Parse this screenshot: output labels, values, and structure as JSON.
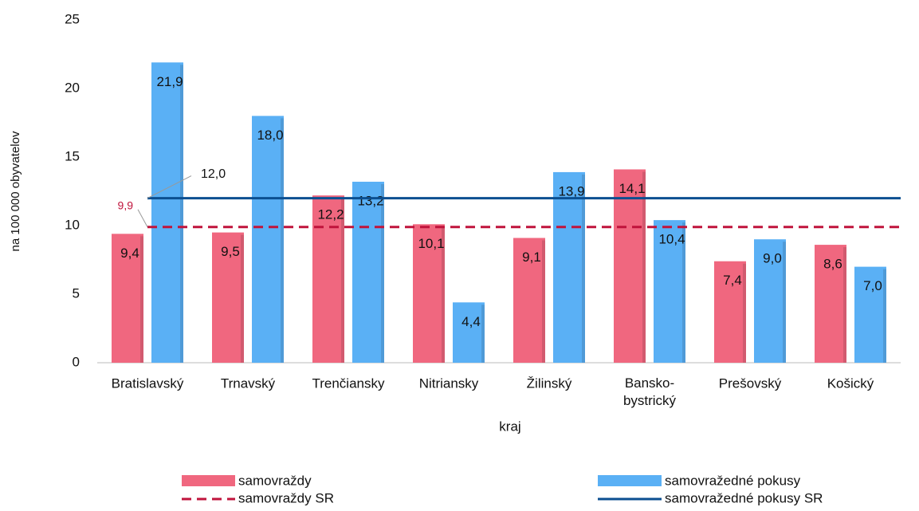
{
  "chart_data": {
    "type": "bar",
    "ylabel": "na 100 000 obyvatelov",
    "xlabel": "kraj",
    "categories": [
      "Bratislavský",
      "Trnavský",
      "Trenčiansky",
      "Nitriansky",
      "Žilinský",
      "Bansko-bystrický",
      "Prešovský",
      "Košický"
    ],
    "series": [
      {
        "name": "samovraždy",
        "color": "#f0677f",
        "values": [
          9.4,
          9.5,
          12.2,
          10.1,
          9.1,
          14.1,
          7.4,
          8.6
        ],
        "value_labels": [
          "9,4",
          "9,5",
          "12,2",
          "10,1",
          "9,1",
          "14,1",
          "7,4",
          "8,6"
        ]
      },
      {
        "name": "samovražedné pokusy",
        "color": "#5ab0f5",
        "values": [
          21.9,
          18.0,
          13.2,
          4.4,
          13.9,
          10.4,
          9.0,
          7.0
        ],
        "value_labels": [
          "21,9",
          "18,0",
          "13,2",
          "4,4",
          "13,9",
          "10,4",
          "9,0",
          "7,0"
        ]
      }
    ],
    "reference_lines": [
      {
        "name": "samovraždy SR",
        "color": "#c0143c",
        "dashed": true,
        "value": 9.9,
        "value_label": "9,9"
      },
      {
        "name": "samovražedné pokusy SR",
        "color": "#0b4f91",
        "dashed": false,
        "value": 12.0,
        "value_label": "12,0"
      }
    ],
    "ylim": [
      0,
      25
    ],
    "yticks": [
      0,
      5,
      10,
      15,
      20,
      25
    ],
    "grid": false
  }
}
